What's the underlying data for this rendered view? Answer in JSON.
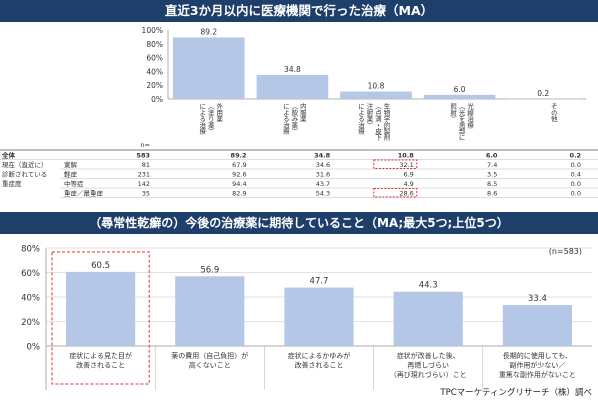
{
  "top": {
    "title": "直近3か月以内に医療機関で行った治療（MA）",
    "n_label": "n=",
    "chart_data": {
      "type": "bar",
      "title": "直近3か月以内に医療機関で行った治療（MA）",
      "categories": [
        "外用薬（塗り薬）による治療",
        "内服薬（飲み薬）による治療",
        "生物学的製剤（点滴・皮下注射薬）による治療",
        "光線治療（光を患部に照射）",
        "その他"
      ],
      "category_lines": [
        [
          "外用薬",
          "（塗り薬）",
          "による治療"
        ],
        [
          "内服薬",
          "（飲み薬）",
          "による治療"
        ],
        [
          "生物学的製剤",
          "（点滴・皮下",
          "注射薬）",
          "による治療"
        ],
        [
          "光線治療",
          "（光を患部に",
          "照射）"
        ],
        [
          "その他"
        ]
      ],
      "values": [
        89.2,
        34.8,
        10.8,
        6.0,
        0.2
      ],
      "value_labels": [
        "89.2",
        "34.8",
        "10.8",
        "6.0",
        "0.2"
      ],
      "ylim": [
        0,
        100
      ],
      "yticks": [
        "100%",
        "80%",
        "60%",
        "40%",
        "20%",
        "0%"
      ],
      "grid": false
    },
    "table": {
      "rows": [
        {
          "group": "全体",
          "label": "",
          "n": "583",
          "vals": [
            "89.2",
            "34.8",
            "10.8",
            "6.0",
            "0.2"
          ],
          "bold": true
        },
        {
          "group": "現在（直近に）",
          "label": "寛解",
          "n": "81",
          "vals": [
            "67.9",
            "34.6",
            "32.1",
            "7.4",
            "0.0"
          ]
        },
        {
          "group": "診断されている",
          "label": "軽症",
          "n": "231",
          "vals": [
            "92.6",
            "31.6",
            "6.9",
            "3.5",
            "0.4"
          ]
        },
        {
          "group": "重症度",
          "label": "中等症",
          "n": "142",
          "vals": [
            "94.4",
            "43.7",
            "4.9",
            "8.5",
            "0.0"
          ]
        },
        {
          "group": "",
          "label": "重症／最重症",
          "n": "35",
          "vals": [
            "82.9",
            "54.3",
            "28.6",
            "8.6",
            "0.0"
          ]
        }
      ]
    }
  },
  "bottom": {
    "title": "（尋常性乾癬の）今後の治療薬に期待していること（MA;最大5つ;上位5つ）",
    "n_note": "(n=583)",
    "chart_data": {
      "type": "bar",
      "title": "（尋常性乾癬の）今後の治療薬に期待していること（MA;最大5つ;上位5つ）",
      "categories": [
        "症状による見た目が改善されること",
        "薬の費用（自己負担）が高くないこと",
        "症状によるかゆみが改善されること",
        "症状が改善した後、再燃しづらい（再び現れづらい）こと",
        "長期的に使用しても、副作用が少ない／重篤な副作用がないこと"
      ],
      "category_lines": [
        [
          "症状による見た目が",
          "改善されること"
        ],
        [
          "薬の費用（自己負担）が",
          "高くないこと"
        ],
        [
          "症状によるかゆみが",
          "改善されること"
        ],
        [
          "症状が改善した後、",
          "再燃しづらい",
          "（再び現れづらい）こと"
        ],
        [
          "長期的に使用しても、",
          "副作用が少ない／",
          "重篤な副作用がないこと"
        ]
      ],
      "values": [
        60.5,
        56.9,
        47.7,
        44.3,
        33.4
      ],
      "value_labels": [
        "60.5",
        "56.9",
        "47.7",
        "44.3",
        "33.4"
      ],
      "ylim": [
        0,
        80
      ],
      "yticks": [
        "80%",
        "60%",
        "40%",
        "20%",
        "0%"
      ],
      "grid": true
    }
  },
  "source": "TPCマーケティングリサーチ（株）調べ",
  "colors": {
    "banner": "#1f3f6b",
    "bar": "#b4c7e7",
    "highlight": "#e03030"
  }
}
